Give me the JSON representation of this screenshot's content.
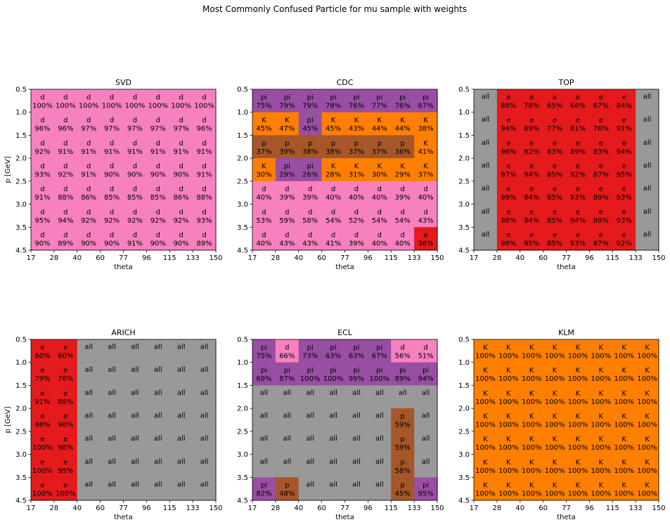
{
  "figure": {
    "title": "Most Commonly Confused Particle for mu sample with weights"
  },
  "colors": {
    "d": "#f781bf",
    "K": "#ff7f00",
    "pi": "#984ea3",
    "p": "#a65628",
    "e": "#e41a1c",
    "all": "#999999"
  },
  "chart_data": [
    {
      "type": "heatmap",
      "title": "SVD",
      "xlabel": "theta",
      "ylabel": "p [GeV]",
      "x_ticks": [
        "17",
        "28",
        "40",
        "60",
        "77",
        "96",
        "115",
        "133",
        "150"
      ],
      "y_ticks": [
        "0.5",
        "1.0",
        "1.5",
        "2.0",
        "2.5",
        "3.0",
        "3.5",
        "4.5"
      ],
      "cells": [
        [
          "d 100%",
          "d 100%",
          "d 100%",
          "d 100%",
          "d 100%",
          "d 100%",
          "d 100%",
          "d 100%"
        ],
        [
          "d 96%",
          "d 96%",
          "d 97%",
          "d 97%",
          "d 97%",
          "d 97%",
          "d 97%",
          "d 96%"
        ],
        [
          "d 92%",
          "d 91%",
          "d 91%",
          "d 91%",
          "d 91%",
          "d 91%",
          "d 91%",
          "d 91%"
        ],
        [
          "d 93%",
          "d 92%",
          "d 91%",
          "d 90%",
          "d 90%",
          "d 90%",
          "d 90%",
          "d 91%"
        ],
        [
          "d 91%",
          "d 88%",
          "d 86%",
          "d 85%",
          "d 85%",
          "d 85%",
          "d 86%",
          "d 88%"
        ],
        [
          "d 95%",
          "d 94%",
          "d 92%",
          "d 92%",
          "d 92%",
          "d 92%",
          "d 92%",
          "d 93%"
        ],
        [
          "d 90%",
          "d 89%",
          "d 90%",
          "d 90%",
          "d 91%",
          "d 90%",
          "d 90%",
          "d 89%"
        ]
      ]
    },
    {
      "type": "heatmap",
      "title": "CDC",
      "xlabel": "theta",
      "ylabel": "",
      "x_ticks": [
        "17",
        "28",
        "40",
        "60",
        "77",
        "96",
        "115",
        "133",
        "150"
      ],
      "y_ticks": [
        "0.5",
        "1.0",
        "1.5",
        "2.0",
        "2.5",
        "3.0",
        "3.5",
        "4.5"
      ],
      "cells": [
        [
          "pi 75%",
          "pi 79%",
          "pi 79%",
          "pi 78%",
          "pi 76%",
          "pi 77%",
          "pi 76%",
          "pi 67%"
        ],
        [
          "K 45%",
          "K 47%",
          "pi 45%",
          "K 45%",
          "K 43%",
          "K 44%",
          "K 44%",
          "K 38%"
        ],
        [
          "p 37%",
          "p 39%",
          "p 38%",
          "p 38%",
          "p 37%",
          "p 37%",
          "p 36%",
          "K 41%"
        ],
        [
          "K 30%",
          "pi 29%",
          "pi 26%",
          "K 28%",
          "K 31%",
          "K 30%",
          "K 29%",
          "K 37%"
        ],
        [
          "d 40%",
          "d 39%",
          "d 39%",
          "d 40%",
          "d 40%",
          "d 40%",
          "d 39%",
          "d 40%"
        ],
        [
          "d 53%",
          "d 59%",
          "d 58%",
          "d 54%",
          "d 52%",
          "d 54%",
          "d 54%",
          "d 43%"
        ],
        [
          "d 40%",
          "d 43%",
          "d 43%",
          "d 41%",
          "d 39%",
          "d 40%",
          "d 40%",
          "e 36%"
        ]
      ]
    },
    {
      "type": "heatmap",
      "title": "TOP",
      "xlabel": "theta",
      "ylabel": "",
      "x_ticks": [
        "17",
        "28",
        "40",
        "60",
        "77",
        "96",
        "115",
        "133",
        "150"
      ],
      "y_ticks": [
        "0.5",
        "1.0",
        "1.5",
        "2.0",
        "2.5",
        "3.0",
        "3.5",
        "4.5"
      ],
      "cells": [
        [
          "all",
          "e 88%",
          "e 78%",
          "e 65%",
          "e 66%",
          "e 67%",
          "e 84%",
          "all"
        ],
        [
          "all",
          "e 94%",
          "e 89%",
          "e 77%",
          "e 81%",
          "e 76%",
          "e 91%",
          "all"
        ],
        [
          "all",
          "e 96%",
          "e 92%",
          "e 83%",
          "e 89%",
          "e 83%",
          "e 94%",
          "all"
        ],
        [
          "all",
          "e 97%",
          "e 94%",
          "e 85%",
          "e 92%",
          "e 87%",
          "e 95%",
          "all"
        ],
        [
          "all",
          "e 98%",
          "e 94%",
          "e 85%",
          "e 93%",
          "e 89%",
          "e 93%",
          "all"
        ],
        [
          "all",
          "e 98%",
          "e 94%",
          "e 85%",
          "e 94%",
          "e 89%",
          "e 93%",
          "all"
        ],
        [
          "all",
          "e 98%",
          "e 95%",
          "e 85%",
          "e 93%",
          "e 87%",
          "e 92%",
          "all"
        ]
      ]
    },
    {
      "type": "heatmap",
      "title": "ARICH",
      "xlabel": "theta",
      "ylabel": "p [GeV]",
      "x_ticks": [
        "17",
        "28",
        "40",
        "60",
        "77",
        "96",
        "115",
        "133",
        "150"
      ],
      "y_ticks": [
        "0.5",
        "1.0",
        "1.5",
        "2.0",
        "2.5",
        "3.0",
        "3.5",
        "4.5"
      ],
      "cells": [
        [
          "e 60%",
          "e 60%",
          "all",
          "all",
          "all",
          "all",
          "all",
          "all"
        ],
        [
          "e 79%",
          "e 76%",
          "all",
          "all",
          "all",
          "all",
          "all",
          "all"
        ],
        [
          "e 91%",
          "e 88%",
          "all",
          "all",
          "all",
          "all",
          "all",
          "all"
        ],
        [
          "e 98%",
          "e 96%",
          "all",
          "all",
          "all",
          "all",
          "all",
          "all"
        ],
        [
          "e 100%",
          "e 98%",
          "all",
          "all",
          "all",
          "all",
          "all",
          "all"
        ],
        [
          "e 100%",
          "e 99%",
          "all",
          "all",
          "all",
          "all",
          "all",
          "all"
        ],
        [
          "e 100%",
          "e 100%",
          "all",
          "all",
          "all",
          "all",
          "all",
          "all"
        ]
      ]
    },
    {
      "type": "heatmap",
      "title": "ECL",
      "xlabel": "theta",
      "ylabel": "",
      "x_ticks": [
        "17",
        "28",
        "40",
        "60",
        "77",
        "96",
        "115",
        "133",
        "150"
      ],
      "y_ticks": [
        "0.5",
        "1.0",
        "1.5",
        "2.0",
        "2.5",
        "3.0",
        "3.5",
        "4.5"
      ],
      "cells": [
        [
          "pi 75%",
          "d 66%",
          "pi 73%",
          "pi 63%",
          "pi 63%",
          "pi 67%",
          "d 56%",
          "d 51%"
        ],
        [
          "pi 69%",
          "pi 87%",
          "pi 100%",
          "pi 100%",
          "pi 99%",
          "pi 100%",
          "pi 89%",
          "pi 94%"
        ],
        [
          "all",
          "all",
          "all",
          "all",
          "all",
          "all",
          "all",
          "all"
        ],
        [
          "all",
          "all",
          "all",
          "all",
          "all",
          "all",
          "p 59%",
          "all"
        ],
        [
          "all",
          "all",
          "all",
          "all",
          "all",
          "all",
          "p 59%",
          "all"
        ],
        [
          "all",
          "all",
          "all",
          "all",
          "all",
          "all",
          "p 58%",
          "all"
        ],
        [
          "pi 82%",
          "p 48%",
          "all",
          "all",
          "all",
          "all",
          "p 45%",
          "pi 95%"
        ]
      ]
    },
    {
      "type": "heatmap",
      "title": "KLM",
      "xlabel": "theta",
      "ylabel": "",
      "x_ticks": [
        "17",
        "28",
        "40",
        "60",
        "77",
        "96",
        "115",
        "133",
        "150"
      ],
      "y_ticks": [
        "0.5",
        "1.0",
        "1.5",
        "2.0",
        "2.5",
        "3.0",
        "3.5",
        "4.5"
      ],
      "cells": [
        [
          "K 100%",
          "K 100%",
          "K 100%",
          "K 100%",
          "K 100%",
          "K 100%",
          "K 100%",
          "K 100%"
        ],
        [
          "K 100%",
          "K 100%",
          "K 100%",
          "K 100%",
          "K 100%",
          "K 100%",
          "K 100%",
          "K 100%"
        ],
        [
          "K 100%",
          "K 100%",
          "K 100%",
          "K 100%",
          "K 100%",
          "K 100%",
          "K 100%",
          "K 100%"
        ],
        [
          "K 100%",
          "K 100%",
          "K 100%",
          "K 100%",
          "K 100%",
          "K 100%",
          "K 100%",
          "K 100%"
        ],
        [
          "K 100%",
          "K 100%",
          "K 100%",
          "K 100%",
          "K 100%",
          "K 100%",
          "K 100%",
          "K 100%"
        ],
        [
          "K 100%",
          "K 100%",
          "K 100%",
          "K 100%",
          "K 100%",
          "K 100%",
          "K 100%",
          "K 100%"
        ],
        [
          "K 100%",
          "K 100%",
          "K 100%",
          "K 100%",
          "K 100%",
          "K 100%",
          "K 100%",
          "K 100%"
        ]
      ]
    }
  ]
}
